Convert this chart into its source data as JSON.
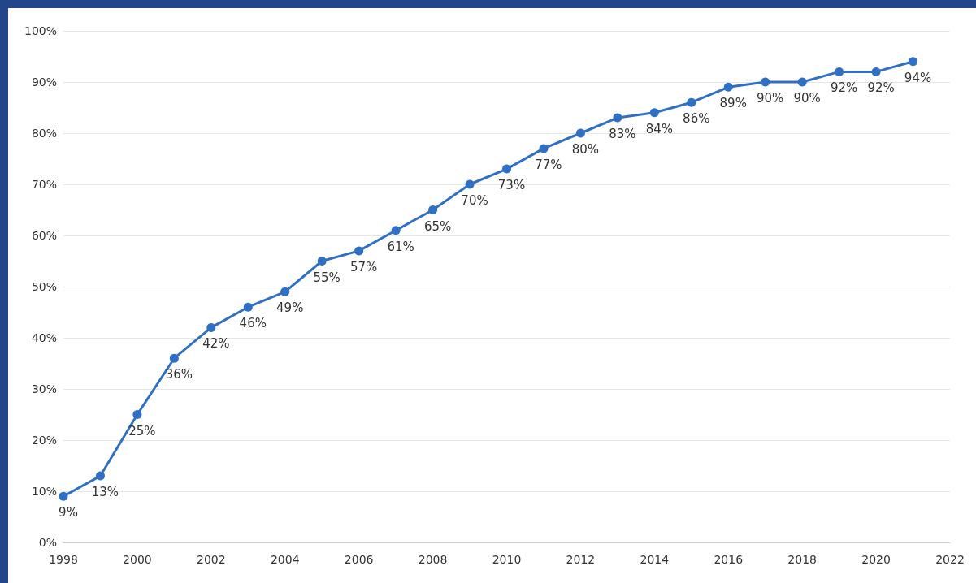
{
  "chart_data": {
    "type": "line",
    "x": [
      1998,
      1999,
      2000,
      2001,
      2002,
      2003,
      2004,
      2005,
      2006,
      2007,
      2008,
      2009,
      2010,
      2011,
      2012,
      2013,
      2014,
      2015,
      2016,
      2017,
      2018,
      2019,
      2020,
      2021
    ],
    "series": [
      {
        "color": "#3070c4",
        "values": [
          9,
          13,
          25,
          36,
          42,
          46,
          49,
          55,
          57,
          61,
          65,
          70,
          73,
          77,
          80,
          83,
          84,
          86,
          89,
          90,
          90,
          92,
          92,
          94
        ],
        "value_labels": [
          "9%",
          "13%",
          "25%",
          "36%",
          "42%",
          "46%",
          "49%",
          "55%",
          "57%",
          "61%",
          "65%",
          "70%",
          "73%",
          "77%",
          "80%",
          "83%",
          "84%",
          "86%",
          "89%",
          "90%",
          "90%",
          "92%",
          "92%",
          "94%"
        ]
      }
    ],
    "xlim": [
      1998,
      2022
    ],
    "xticks": [
      1998,
      2000,
      2002,
      2004,
      2006,
      2008,
      2010,
      2012,
      2014,
      2016,
      2018,
      2020,
      2022
    ],
    "ylim": [
      0,
      100
    ],
    "yticks": [
      {
        "value": 0,
        "label": "0%"
      },
      {
        "value": 10,
        "label": "10%"
      },
      {
        "value": 20,
        "label": "20%"
      },
      {
        "value": 30,
        "label": "30%"
      },
      {
        "value": 40,
        "label": "40%"
      },
      {
        "value": 50,
        "label": "50%"
      },
      {
        "value": 60,
        "label": "60%"
      },
      {
        "value": 70,
        "label": "70%"
      },
      {
        "value": 80,
        "label": "80%"
      },
      {
        "value": 90,
        "label": "90%"
      },
      {
        "value": 100,
        "label": "100%"
      }
    ],
    "grid": "y",
    "marker": "circle",
    "line_style": "solid"
  }
}
